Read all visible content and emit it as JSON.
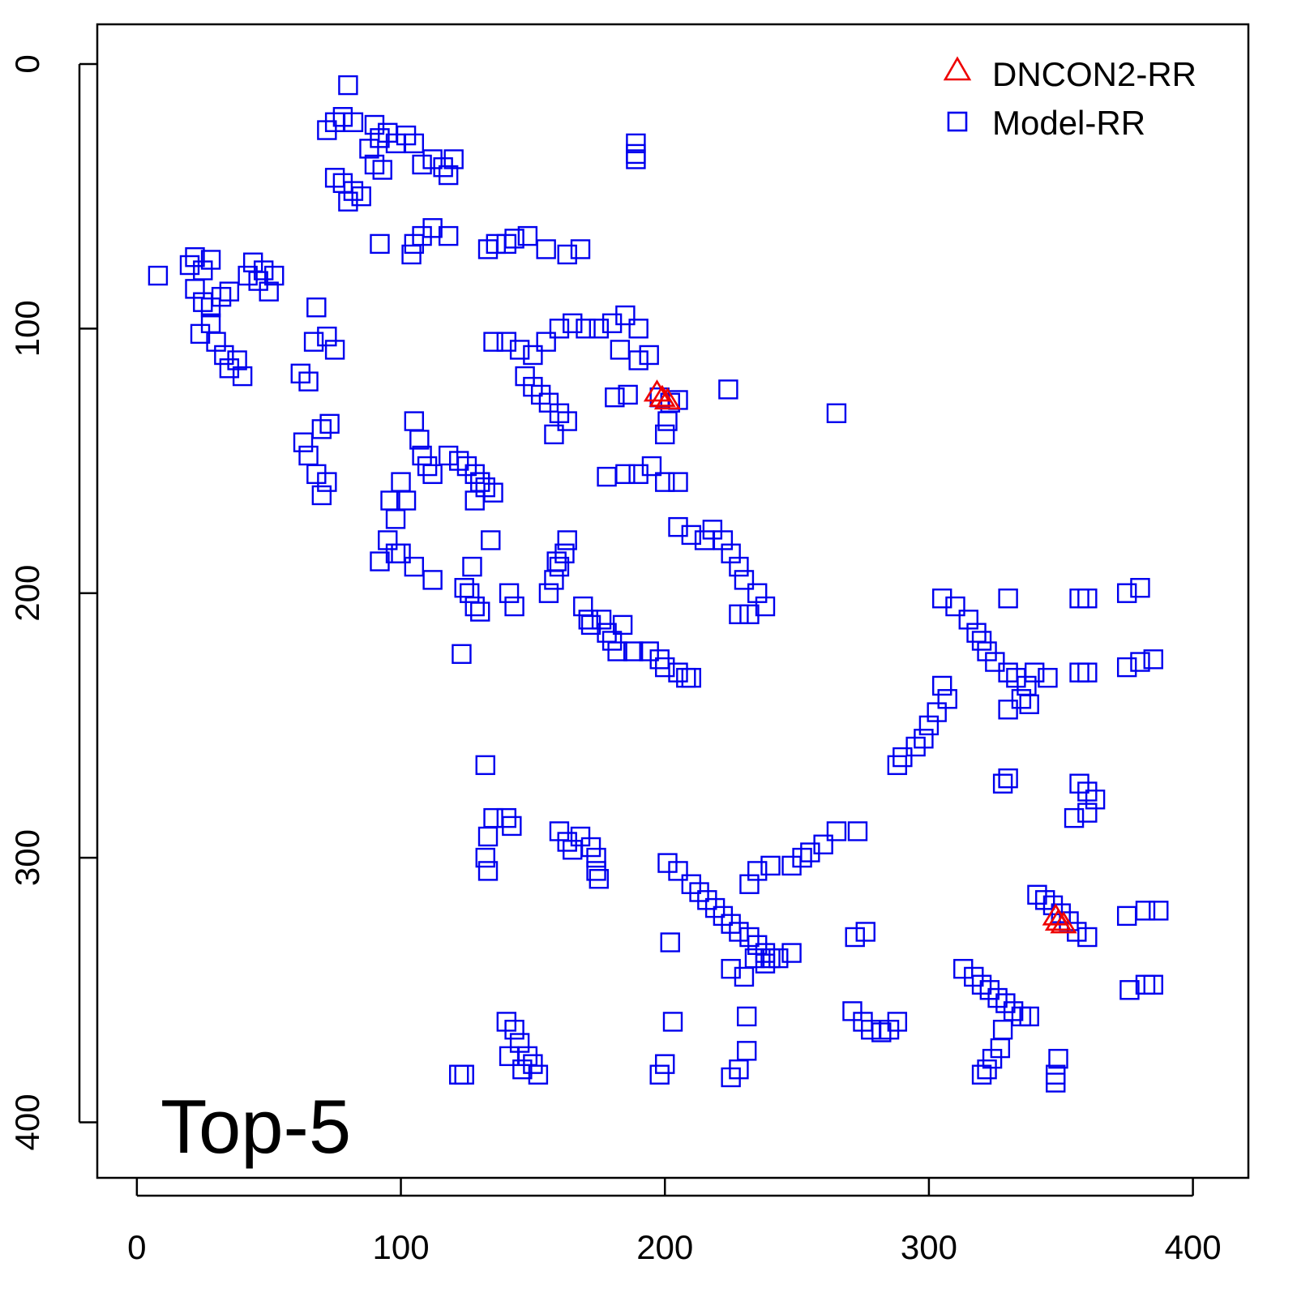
{
  "chart_data": {
    "type": "scatter",
    "title": "",
    "xlabel": "",
    "ylabel": "",
    "annotation": "Top-5",
    "xlim": [
      -15,
      421
    ],
    "ylim": [
      -15,
      421
    ],
    "y_reversed": true,
    "xticks": [
      "0",
      "100",
      "200",
      "300",
      "400"
    ],
    "yticks": [
      "0",
      "100",
      "200",
      "300",
      "400"
    ],
    "grid": false,
    "legend": {
      "position": "top-right",
      "entries": [
        "DNCON2-RR",
        "Model-RR"
      ]
    },
    "series": [
      {
        "name": "Model-RR",
        "marker": "square",
        "color": "#0000ee",
        "points": [
          [
            80,
            8
          ],
          [
            75,
            22
          ],
          [
            72,
            25
          ],
          [
            78,
            20
          ],
          [
            82,
            22
          ],
          [
            90,
            23
          ],
          [
            92,
            28
          ],
          [
            88,
            32
          ],
          [
            95,
            26
          ],
          [
            98,
            30
          ],
          [
            102,
            27
          ],
          [
            105,
            30
          ],
          [
            108,
            38
          ],
          [
            112,
            36
          ],
          [
            116,
            39
          ],
          [
            118,
            42
          ],
          [
            120,
            36
          ],
          [
            90,
            38
          ],
          [
            93,
            40
          ],
          [
            75,
            43
          ],
          [
            78,
            45
          ],
          [
            82,
            48
          ],
          [
            80,
            52
          ],
          [
            85,
            50
          ],
          [
            189,
            30
          ],
          [
            189,
            34
          ],
          [
            189,
            36
          ],
          [
            8,
            80
          ],
          [
            20,
            76
          ],
          [
            22,
            73
          ],
          [
            25,
            78
          ],
          [
            28,
            74
          ],
          [
            22,
            85
          ],
          [
            25,
            90
          ],
          [
            28,
            92
          ],
          [
            32,
            88
          ],
          [
            35,
            86
          ],
          [
            24,
            102
          ],
          [
            28,
            98
          ],
          [
            30,
            105
          ],
          [
            33,
            110
          ],
          [
            35,
            115
          ],
          [
            38,
            112
          ],
          [
            40,
            118
          ],
          [
            42,
            80
          ],
          [
            44,
            75
          ],
          [
            46,
            82
          ],
          [
            48,
            78
          ],
          [
            50,
            86
          ],
          [
            52,
            80
          ],
          [
            92,
            68
          ],
          [
            105,
            68
          ],
          [
            104,
            72
          ],
          [
            108,
            65
          ],
          [
            112,
            62
          ],
          [
            118,
            65
          ],
          [
            133,
            70
          ],
          [
            136,
            68
          ],
          [
            140,
            68
          ],
          [
            143,
            66
          ],
          [
            148,
            65
          ],
          [
            155,
            70
          ],
          [
            163,
            72
          ],
          [
            168,
            70
          ],
          [
            68,
            92
          ],
          [
            62,
            117
          ],
          [
            65,
            120
          ],
          [
            67,
            105
          ],
          [
            72,
            103
          ],
          [
            75,
            108
          ],
          [
            135,
            105
          ],
          [
            140,
            105
          ],
          [
            145,
            108
          ],
          [
            150,
            110
          ],
          [
            155,
            105
          ],
          [
            160,
            100
          ],
          [
            165,
            98
          ],
          [
            170,
            100
          ],
          [
            175,
            100
          ],
          [
            180,
            98
          ],
          [
            185,
            95
          ],
          [
            190,
            100
          ],
          [
            183,
            108
          ],
          [
            190,
            112
          ],
          [
            194,
            110
          ],
          [
            147,
            118
          ],
          [
            150,
            122
          ],
          [
            153,
            125
          ],
          [
            156,
            128
          ],
          [
            160,
            132
          ],
          [
            163,
            135
          ],
          [
            158,
            140
          ],
          [
            181,
            126
          ],
          [
            186,
            125
          ],
          [
            198,
            126
          ],
          [
            202,
            128
          ],
          [
            205,
            127
          ],
          [
            224,
            123
          ],
          [
            265,
            132
          ],
          [
            201,
            135
          ],
          [
            200,
            140
          ],
          [
            63,
            143
          ],
          [
            65,
            148
          ],
          [
            70,
            138
          ],
          [
            73,
            136
          ],
          [
            68,
            155
          ],
          [
            70,
            163
          ],
          [
            72,
            158
          ],
          [
            105,
            135
          ],
          [
            107,
            142
          ],
          [
            108,
            148
          ],
          [
            110,
            152
          ],
          [
            112,
            155
          ],
          [
            100,
            158
          ],
          [
            102,
            165
          ],
          [
            96,
            165
          ],
          [
            98,
            172
          ],
          [
            95,
            180
          ],
          [
            98,
            185
          ],
          [
            92,
            188
          ],
          [
            100,
            185
          ],
          [
            105,
            190
          ],
          [
            112,
            195
          ],
          [
            118,
            148
          ],
          [
            122,
            150
          ],
          [
            125,
            152
          ],
          [
            128,
            155
          ],
          [
            130,
            158
          ],
          [
            132,
            160
          ],
          [
            135,
            162
          ],
          [
            128,
            165
          ],
          [
            178,
            156
          ],
          [
            185,
            155
          ],
          [
            190,
            155
          ],
          [
            195,
            152
          ],
          [
            200,
            158
          ],
          [
            205,
            158
          ],
          [
            205,
            175
          ],
          [
            210,
            178
          ],
          [
            215,
            180
          ],
          [
            218,
            176
          ],
          [
            222,
            180
          ],
          [
            225,
            185
          ],
          [
            228,
            190
          ],
          [
            230,
            195
          ],
          [
            235,
            200
          ],
          [
            238,
            205
          ],
          [
            228,
            208
          ],
          [
            232,
            208
          ],
          [
            124,
            198
          ],
          [
            126,
            200
          ],
          [
            128,
            205
          ],
          [
            130,
            207
          ],
          [
            127,
            190
          ],
          [
            134,
            180
          ],
          [
            141,
            200
          ],
          [
            143,
            205
          ],
          [
            156,
            200
          ],
          [
            158,
            195
          ],
          [
            160,
            190
          ],
          [
            162,
            185
          ],
          [
            163,
            180
          ],
          [
            159,
            188
          ],
          [
            169,
            205
          ],
          [
            171,
            210
          ],
          [
            123,
            223
          ],
          [
            172,
            212
          ],
          [
            176,
            210
          ],
          [
            178,
            215
          ],
          [
            180,
            218
          ],
          [
            184,
            212
          ],
          [
            182,
            222
          ],
          [
            188,
            222
          ],
          [
            194,
            222
          ],
          [
            198,
            225
          ],
          [
            200,
            228
          ],
          [
            205,
            230
          ],
          [
            208,
            232
          ],
          [
            210,
            232
          ],
          [
            305,
            202
          ],
          [
            310,
            205
          ],
          [
            315,
            210
          ],
          [
            318,
            215
          ],
          [
            320,
            218
          ],
          [
            322,
            222
          ],
          [
            325,
            226
          ],
          [
            330,
            230
          ],
          [
            333,
            232
          ],
          [
            337,
            235
          ],
          [
            340,
            230
          ],
          [
            345,
            232
          ],
          [
            335,
            240
          ],
          [
            338,
            242
          ],
          [
            330,
            244
          ],
          [
            305,
            235
          ],
          [
            307,
            240
          ],
          [
            303,
            245
          ],
          [
            300,
            250
          ],
          [
            298,
            255
          ],
          [
            295,
            258
          ],
          [
            290,
            262
          ],
          [
            288,
            265
          ],
          [
            330,
            202
          ],
          [
            357,
            202
          ],
          [
            360,
            202
          ],
          [
            375,
            200
          ],
          [
            380,
            198
          ],
          [
            375,
            228
          ],
          [
            380,
            226
          ],
          [
            385,
            225
          ],
          [
            357,
            230
          ],
          [
            360,
            230
          ],
          [
            132,
            265
          ],
          [
            328,
            272
          ],
          [
            330,
            270
          ],
          [
            357,
            272
          ],
          [
            360,
            275
          ],
          [
            363,
            278
          ],
          [
            355,
            285
          ],
          [
            360,
            283
          ],
          [
            135,
            285
          ],
          [
            140,
            285
          ],
          [
            142,
            288
          ],
          [
            133,
            292
          ],
          [
            132,
            300
          ],
          [
            133,
            305
          ],
          [
            160,
            290
          ],
          [
            163,
            294
          ],
          [
            165,
            297
          ],
          [
            168,
            292
          ],
          [
            172,
            296
          ],
          [
            174,
            300
          ],
          [
            174,
            305
          ],
          [
            175,
            308
          ],
          [
            201,
            302
          ],
          [
            205,
            305
          ],
          [
            210,
            310
          ],
          [
            213,
            313
          ],
          [
            216,
            316
          ],
          [
            219,
            319
          ],
          [
            222,
            322
          ],
          [
            225,
            325
          ],
          [
            228,
            328
          ],
          [
            232,
            330
          ],
          [
            235,
            333
          ],
          [
            238,
            336
          ],
          [
            240,
            338
          ],
          [
            232,
            310
          ],
          [
            235,
            305
          ],
          [
            240,
            303
          ],
          [
            248,
            303
          ],
          [
            252,
            300
          ],
          [
            255,
            298
          ],
          [
            260,
            295
          ],
          [
            265,
            290
          ],
          [
            273,
            290
          ],
          [
            341,
            314
          ],
          [
            344,
            316
          ],
          [
            347,
            318
          ],
          [
            350,
            321
          ],
          [
            353,
            324
          ],
          [
            356,
            328
          ],
          [
            360,
            330
          ],
          [
            375,
            322
          ],
          [
            382,
            320
          ],
          [
            387,
            320
          ],
          [
            272,
            330
          ],
          [
            276,
            328
          ],
          [
            202,
            332
          ],
          [
            234,
            338
          ],
          [
            238,
            340
          ],
          [
            243,
            338
          ],
          [
            248,
            336
          ],
          [
            230,
            345
          ],
          [
            225,
            342
          ],
          [
            313,
            342
          ],
          [
            317,
            345
          ],
          [
            320,
            348
          ],
          [
            323,
            350
          ],
          [
            326,
            353
          ],
          [
            329,
            355
          ],
          [
            332,
            358
          ],
          [
            335,
            360
          ],
          [
            338,
            360
          ],
          [
            328,
            365
          ],
          [
            376,
            350
          ],
          [
            382,
            348
          ],
          [
            385,
            348
          ],
          [
            140,
            362
          ],
          [
            143,
            365
          ],
          [
            145,
            370
          ],
          [
            148,
            375
          ],
          [
            150,
            378
          ],
          [
            152,
            382
          ],
          [
            146,
            380
          ],
          [
            141,
            375
          ],
          [
            203,
            362
          ],
          [
            231,
            360
          ],
          [
            271,
            358
          ],
          [
            275,
            362
          ],
          [
            278,
            365
          ],
          [
            282,
            366
          ],
          [
            285,
            365
          ],
          [
            288,
            362
          ],
          [
            320,
            382
          ],
          [
            322,
            380
          ],
          [
            324,
            376
          ],
          [
            327,
            372
          ],
          [
            349,
            376
          ],
          [
            348,
            382
          ],
          [
            348,
            385
          ],
          [
            122,
            382
          ],
          [
            124,
            382
          ],
          [
            198,
            382
          ],
          [
            200,
            378
          ],
          [
            225,
            383
          ],
          [
            228,
            380
          ],
          [
            231,
            373
          ]
        ]
      },
      {
        "name": "DNCON2-RR",
        "marker": "triangle",
        "color": "#ee0000",
        "points": [
          [
            197,
            124
          ],
          [
            199,
            126
          ],
          [
            201,
            127
          ],
          [
            348,
            322
          ],
          [
            349,
            324
          ],
          [
            351,
            325
          ]
        ]
      }
    ]
  }
}
